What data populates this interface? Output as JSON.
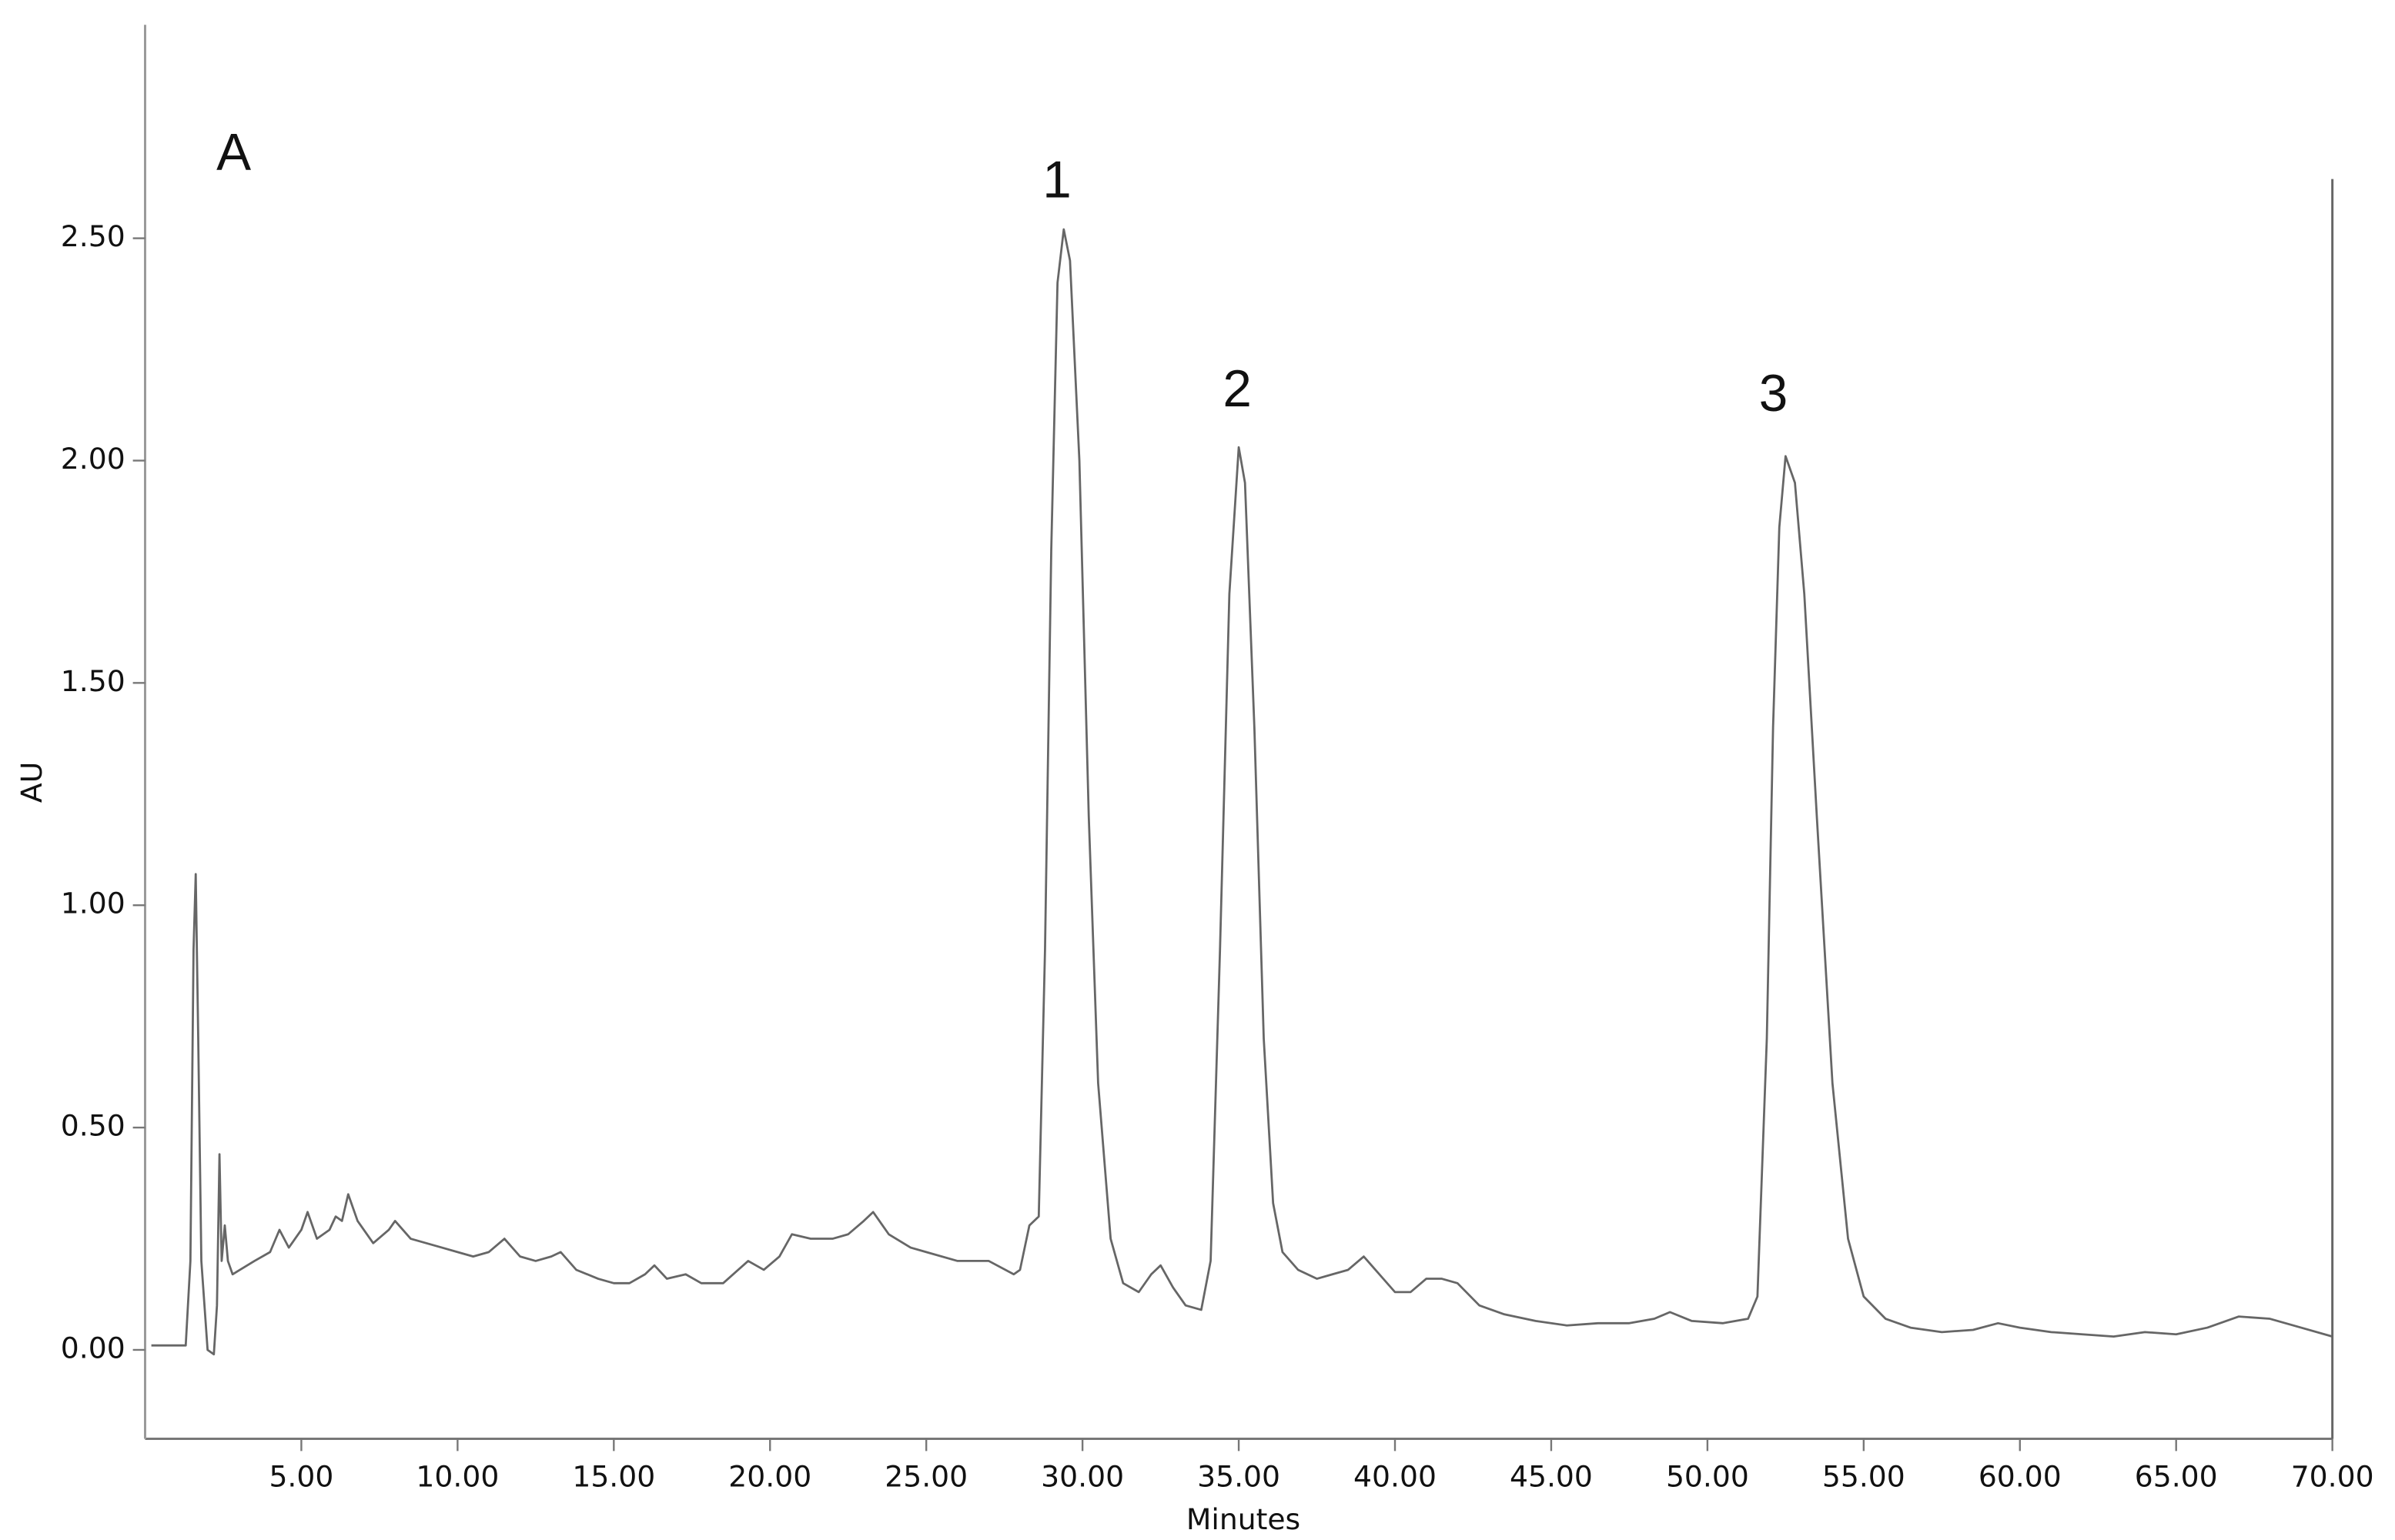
{
  "chart_data": {
    "type": "line",
    "panel_label": "A",
    "peak_labels": [
      "1",
      "2",
      "3"
    ],
    "x_label": "Minutes",
    "y_label": "AU",
    "color": "#666666",
    "xlim": [
      0,
      70
    ],
    "ylim": [
      -0.2,
      2.98
    ],
    "xticks": [
      {
        "value": 5,
        "label": "5.00"
      },
      {
        "value": 10,
        "label": "10.00"
      },
      {
        "value": 15,
        "label": "15.00"
      },
      {
        "value": 20,
        "label": "20.00"
      },
      {
        "value": 25,
        "label": "25.00"
      },
      {
        "value": 30,
        "label": "30.00"
      },
      {
        "value": 35,
        "label": "35.00"
      },
      {
        "value": 40,
        "label": "40.00"
      },
      {
        "value": 45,
        "label": "45.00"
      },
      {
        "value": 50,
        "label": "50.00"
      },
      {
        "value": 55,
        "label": "55.00"
      },
      {
        "value": 60,
        "label": "60.00"
      },
      {
        "value": 65,
        "label": "65.00"
      },
      {
        "value": 70,
        "label": "70.00"
      }
    ],
    "yticks": [
      {
        "value": 0,
        "label": "0.00"
      },
      {
        "value": 0.5,
        "label": "0.50"
      },
      {
        "value": 1,
        "label": "1.00"
      },
      {
        "value": 1.5,
        "label": "1.50"
      },
      {
        "value": 2,
        "label": "2.00"
      },
      {
        "value": 2.5,
        "label": "2.50"
      }
    ],
    "x": [
      0.2,
      1.3,
      1.45,
      1.55,
      1.62,
      1.7,
      1.8,
      2.0,
      2.2,
      2.3,
      2.38,
      2.45,
      2.55,
      2.65,
      2.8,
      3.5,
      4.0,
      4.3,
      4.6,
      5.0,
      5.2,
      5.5,
      5.9,
      6.1,
      6.3,
      6.5,
      6.8,
      7.3,
      7.8,
      8.0,
      8.5,
      9.0,
      9.5,
      10.0,
      10.5,
      11.0,
      11.5,
      12.0,
      12.5,
      13.0,
      13.3,
      13.8,
      14.5,
      15.0,
      15.5,
      16.0,
      16.3,
      16.7,
      17.3,
      17.8,
      18.5,
      19.3,
      19.8,
      20.3,
      20.7,
      21.3,
      22.0,
      22.5,
      23.0,
      23.3,
      23.8,
      24.5,
      25.0,
      26.0,
      27.0,
      27.8,
      28.0,
      28.3,
      28.6,
      28.8,
      29.0,
      29.2,
      29.4,
      29.6,
      29.9,
      30.2,
      30.5,
      30.9,
      31.3,
      31.8,
      32.2,
      32.5,
      32.9,
      33.3,
      33.8,
      34.1,
      34.4,
      34.7,
      35.0,
      35.2,
      35.5,
      35.8,
      36.1,
      36.4,
      36.9,
      37.5,
      38.0,
      38.5,
      39.0,
      39.5,
      40.0,
      40.5,
      41.0,
      41.5,
      42.0,
      42.7,
      43.5,
      44.5,
      45.5,
      46.5,
      47.5,
      48.3,
      48.8,
      49.5,
      50.5,
      51.3,
      51.6,
      51.9,
      52.1,
      52.3,
      52.5,
      52.8,
      53.1,
      53.5,
      54.0,
      54.5,
      55.0,
      55.7,
      56.5,
      57.5,
      58.5,
      59.3,
      60.0,
      61.0,
      62.0,
      63.0,
      64.0,
      65.0,
      66.0,
      67.0,
      68.0,
      69.0,
      70.0
    ],
    "values": [
      0.01,
      0.01,
      0.2,
      0.9,
      1.07,
      0.7,
      0.2,
      0.0,
      -0.01,
      0.1,
      0.44,
      0.2,
      0.28,
      0.2,
      0.17,
      0.2,
      0.22,
      0.27,
      0.23,
      0.27,
      0.31,
      0.25,
      0.27,
      0.3,
      0.29,
      0.35,
      0.29,
      0.24,
      0.27,
      0.29,
      0.25,
      0.24,
      0.23,
      0.22,
      0.21,
      0.22,
      0.25,
      0.21,
      0.2,
      0.21,
      0.22,
      0.18,
      0.16,
      0.15,
      0.15,
      0.17,
      0.19,
      0.16,
      0.17,
      0.15,
      0.15,
      0.2,
      0.18,
      0.21,
      0.26,
      0.25,
      0.25,
      0.26,
      0.29,
      0.31,
      0.26,
      0.23,
      0.22,
      0.2,
      0.2,
      0.17,
      0.18,
      0.28,
      0.3,
      0.9,
      1.8,
      2.4,
      2.52,
      2.45,
      2.0,
      1.2,
      0.6,
      0.25,
      0.15,
      0.13,
      0.17,
      0.19,
      0.14,
      0.1,
      0.09,
      0.2,
      0.9,
      1.7,
      2.03,
      1.95,
      1.4,
      0.7,
      0.33,
      0.22,
      0.18,
      0.16,
      0.17,
      0.18,
      0.21,
      0.17,
      0.13,
      0.13,
      0.16,
      0.16,
      0.15,
      0.1,
      0.08,
      0.065,
      0.055,
      0.06,
      0.06,
      0.07,
      0.085,
      0.065,
      0.06,
      0.07,
      0.12,
      0.7,
      1.4,
      1.85,
      2.01,
      1.95,
      1.7,
      1.2,
      0.6,
      0.25,
      0.12,
      0.07,
      0.05,
      0.04,
      0.045,
      0.06,
      0.05,
      0.04,
      0.035,
      0.03,
      0.04,
      0.035,
      0.05,
      0.075,
      0.07,
      0.05,
      0.03
    ]
  }
}
